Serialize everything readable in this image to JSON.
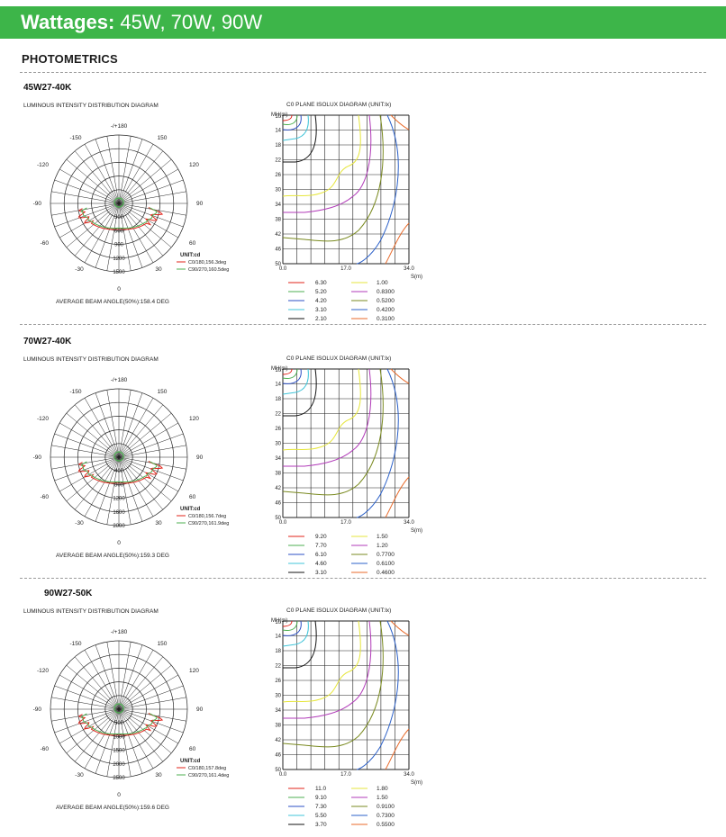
{
  "header": {
    "title_bold": "Wattages:",
    "title_rest": " 45W, 70W, 90W",
    "color": "#3db549"
  },
  "section_title": "PHOTOMETRICS",
  "polar_caption": "LUMINOUS INTENSITY DISTRIBUTION DIAGRAM",
  "isolux_caption": "C0 PLANE ISOLUX DIAGRAM (UNIT:lx)",
  "angle_labels": [
    "-/+180",
    "-150",
    "150",
    "-120",
    "120",
    "-90",
    "90",
    "-60",
    "60",
    "-30",
    "30",
    "0"
  ],
  "unit_label": "UNIT:cd",
  "isolux_axes": {
    "y_label": "MH(m)",
    "x_label": "S(m)",
    "y_ticks": [
      "10",
      "14",
      "18",
      "22",
      "26",
      "30",
      "34",
      "38",
      "42",
      "46",
      "50"
    ],
    "x_ticks": [
      "0.0",
      "17.0",
      "34.0"
    ]
  },
  "colors": {
    "c0": "#e2231a",
    "c90": "#4caf50",
    "grid": "#222222"
  },
  "isolux_colors_left": [
    "#e2231a",
    "#4caf50",
    "#2b4fc4",
    "#40c4d8",
    "#111111"
  ],
  "isolux_colors_right": [
    "#e6e63c",
    "#b13bb8",
    "#7a8a20",
    "#2b60c8",
    "#e86a2a"
  ],
  "products": [
    {
      "model": "45W27-40K",
      "ring_labels": [
        "300",
        "600",
        "900",
        "1200",
        "1500"
      ],
      "legend_c0": "C0/180,156.3deg",
      "legend_c90": "C90/270,160.5deg",
      "beam_angle": "AVERAGE BEAM ANGLE(50%):158.4 DEG",
      "isolux_left": [
        "6.30",
        "5.20",
        "4.20",
        "3.10",
        "2.10"
      ],
      "isolux_right": [
        "1.00",
        "0.8300",
        "0.5200",
        "0.4200",
        "0.3100"
      ]
    },
    {
      "model": "70W27-40K",
      "ring_labels": [
        "400",
        "800",
        "1200",
        "1600",
        "2000"
      ],
      "legend_c0": "C0/180,156.7deg",
      "legend_c90": "C90/270,161.9deg",
      "beam_angle": "AVERAGE BEAM ANGLE(50%):159.3 DEG",
      "isolux_left": [
        "9.20",
        "7.70",
        "6.10",
        "4.60",
        "3.10"
      ],
      "isolux_right": [
        "1.50",
        "1.20",
        "0.7700",
        "0.6100",
        "0.4600"
      ]
    },
    {
      "model": "90W27-50K",
      "ring_labels": [
        "500",
        "1000",
        "1500",
        "2000",
        "2500"
      ],
      "legend_c0": "C0/180,157.8deg",
      "legend_c90": "C90/270,161.4deg",
      "beam_angle": "AVERAGE BEAM ANGLE(50%):159.6 DEG",
      "isolux_left": [
        "11.0",
        "9.10",
        "7.30",
        "5.50",
        "3.70"
      ],
      "isolux_right": [
        "1.80",
        "1.50",
        "0.9100",
        "0.7300",
        "0.5500"
      ]
    }
  ]
}
